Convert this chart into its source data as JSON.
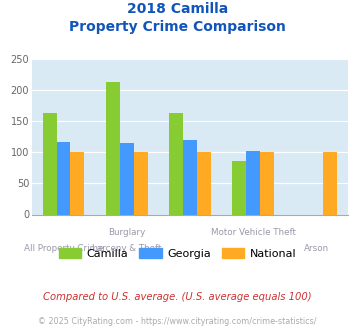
{
  "title_line1": "2018 Camilla",
  "title_line2": "Property Crime Comparison",
  "series": {
    "Camilla": [
      163,
      214,
      163,
      86,
      null
    ],
    "Georgia": [
      117,
      115,
      120,
      103,
      null
    ],
    "National": [
      100,
      100,
      100,
      100,
      100
    ]
  },
  "colors": {
    "Camilla": "#88cc33",
    "Georgia": "#4499ff",
    "National": "#ffaa22"
  },
  "group_positions": [
    0.5,
    1.5,
    2.5,
    3.5,
    4.5
  ],
  "top_labels": [
    "",
    "Burglary",
    "",
    "Motor Vehicle Theft",
    ""
  ],
  "bot_labels": [
    "All Property Crime",
    "Larceny & Theft",
    "",
    "",
    "Arson"
  ],
  "ylim": [
    0,
    250
  ],
  "yticks": [
    0,
    50,
    100,
    150,
    200,
    250
  ],
  "plot_bg": "#daeaf5",
  "title_color": "#1155bb",
  "label_color": "#9999aa",
  "footer_text": "Compared to U.S. average. (U.S. average equals 100)",
  "copyright_text": "© 2025 CityRating.com - https://www.cityrating.com/crime-statistics/",
  "footer_color": "#cc3333",
  "copyright_color": "#aaaaaa",
  "bar_width": 0.22
}
